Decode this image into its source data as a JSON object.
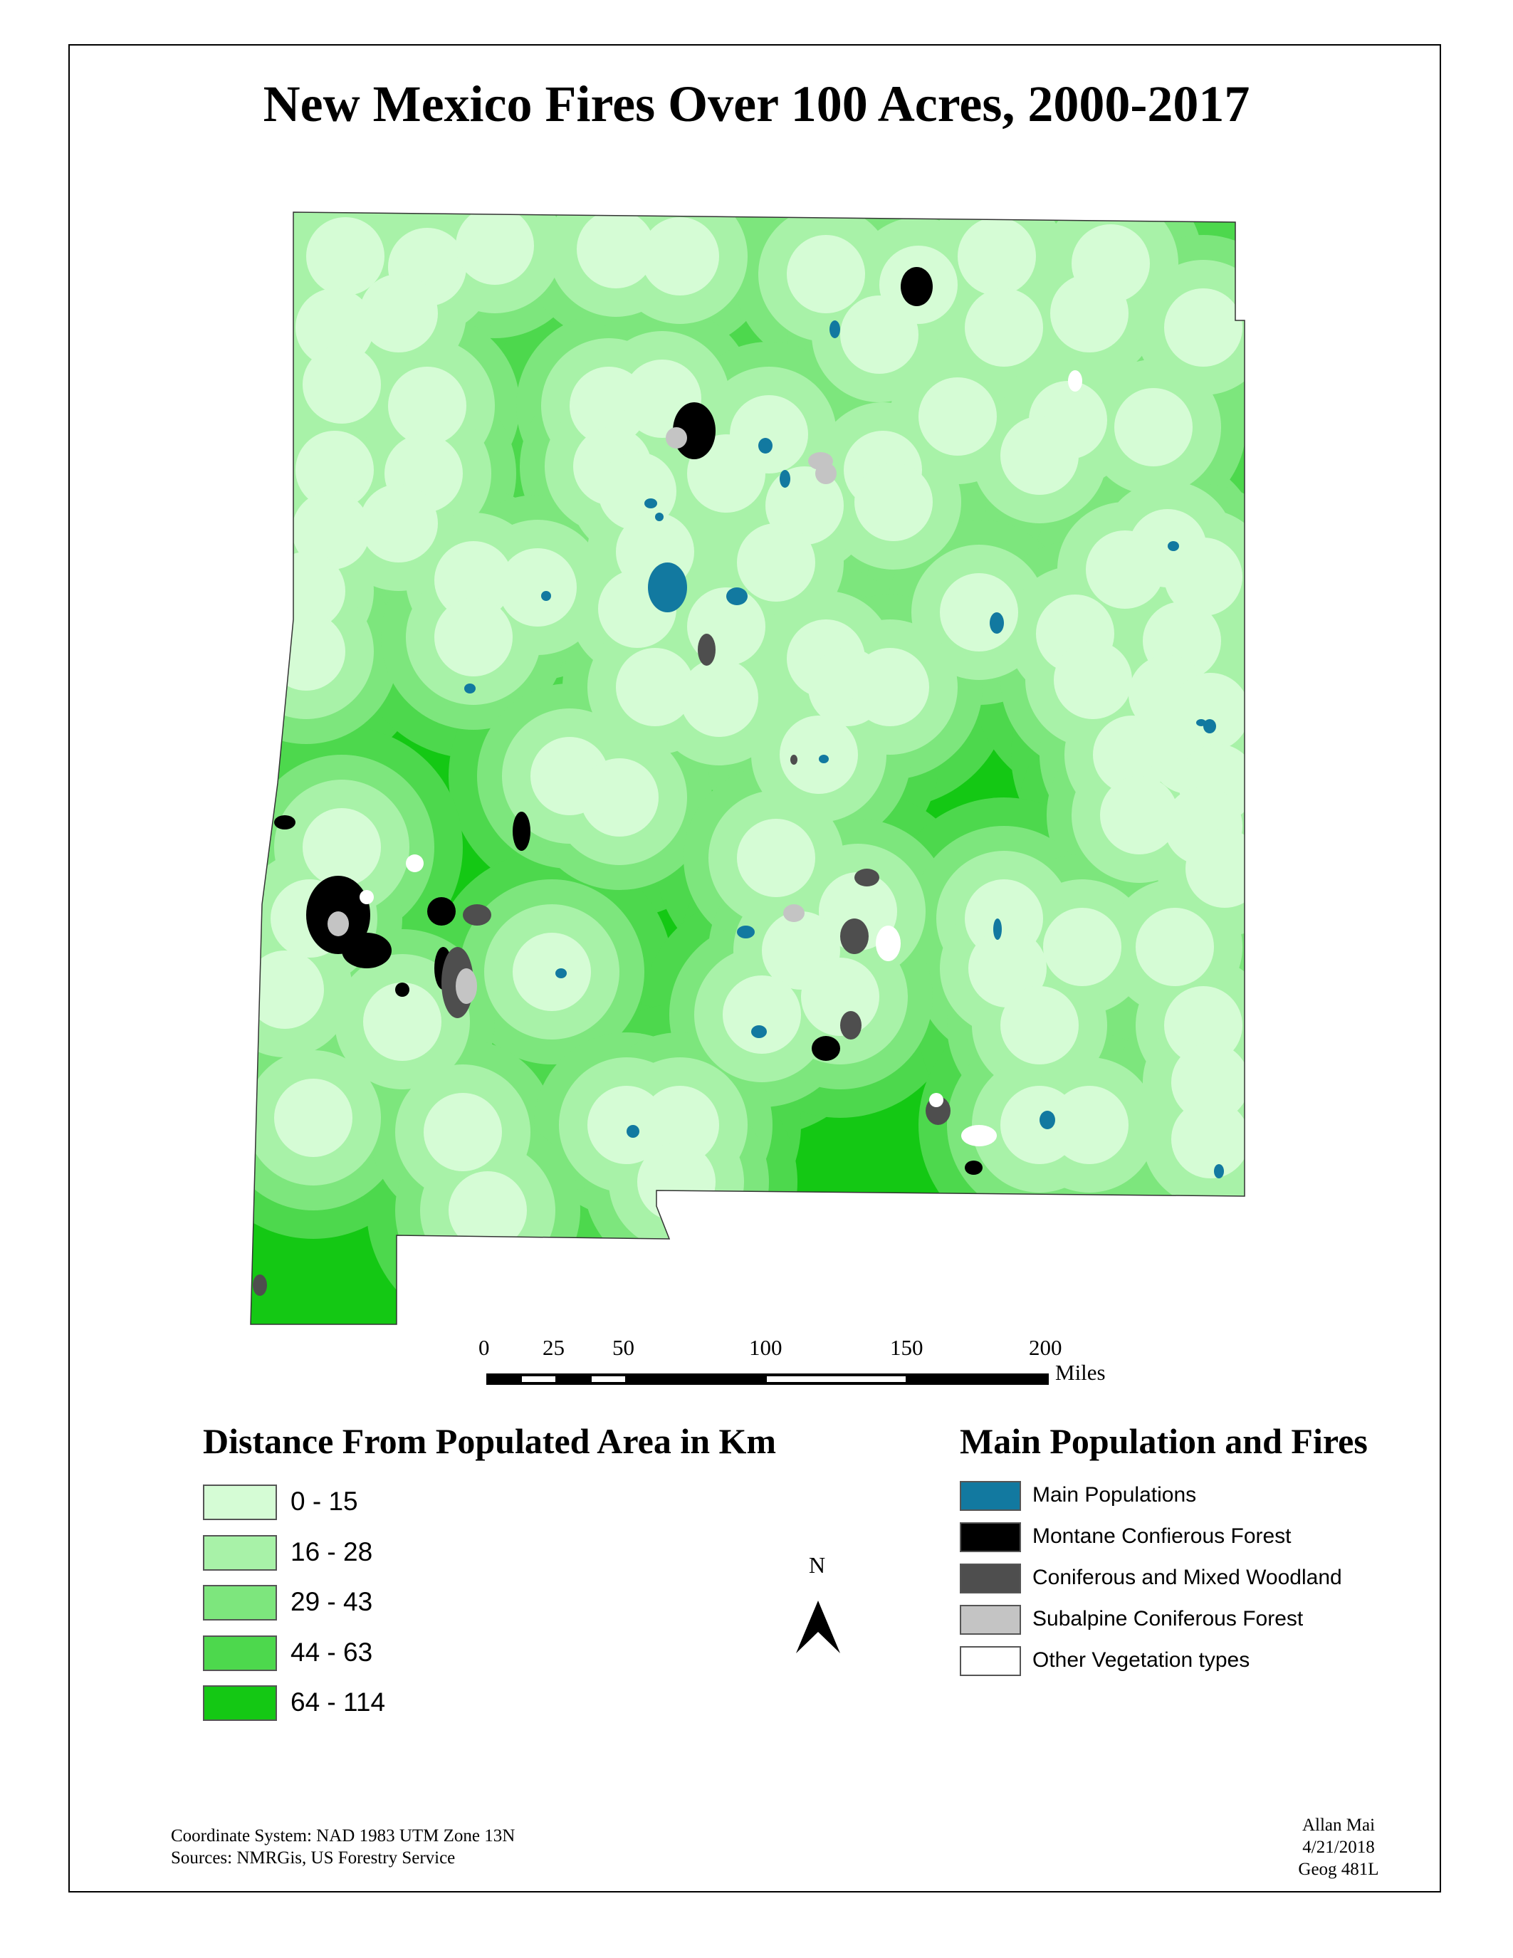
{
  "map": {
    "title": "New Mexico Fires Over 100 Acres, 2000-2017",
    "distance_class_colors": [
      "#d5fcd5",
      "#a8f2a8",
      "#7de67d",
      "#4dd84d",
      "#14c814"
    ],
    "fire_colors": {
      "main_populations": "#1279a0",
      "montane": "#000000",
      "mixed": "#4e4e4e",
      "subalpine": "#c4c4c4",
      "other": "#ffffff"
    }
  },
  "scale_bar": {
    "ticks": [
      "0",
      "25",
      "50",
      "100",
      "150",
      "200"
    ],
    "units": "Miles"
  },
  "legend_distance": {
    "title": "Distance From Populated Area in Km",
    "items": [
      {
        "label": "0 - 15",
        "color": "#d5fcd5"
      },
      {
        "label": "16 - 28",
        "color": "#a8f2a8"
      },
      {
        "label": "29 - 43",
        "color": "#7de67d"
      },
      {
        "label": "44 - 63",
        "color": "#4dd84d"
      },
      {
        "label": "64 - 114",
        "color": "#14c814"
      }
    ]
  },
  "legend_fires": {
    "title": "Main Population and Fires",
    "items": [
      {
        "label": "Main Populations",
        "color": "#1279a0"
      },
      {
        "label": "Montane Confierous Forest",
        "color": "#000000"
      },
      {
        "label": "Coniferous and Mixed Woodland",
        "color": "#4e4e4e"
      },
      {
        "label": "Subalpine Coniferous Forest",
        "color": "#c4c4c4"
      },
      {
        "label": "Other Vegetation types",
        "color": "#ffffff"
      }
    ]
  },
  "north_arrow": {
    "label": "N"
  },
  "footer_left": {
    "line1": "Coordinate System: NAD 1983 UTM Zone 13N",
    "line2": "Sources: NMRGis, US Forestry Service"
  },
  "footer_right": {
    "line1": "Allan Mai",
    "line2": "4/21/2018",
    "line3": "Geog 481L"
  }
}
